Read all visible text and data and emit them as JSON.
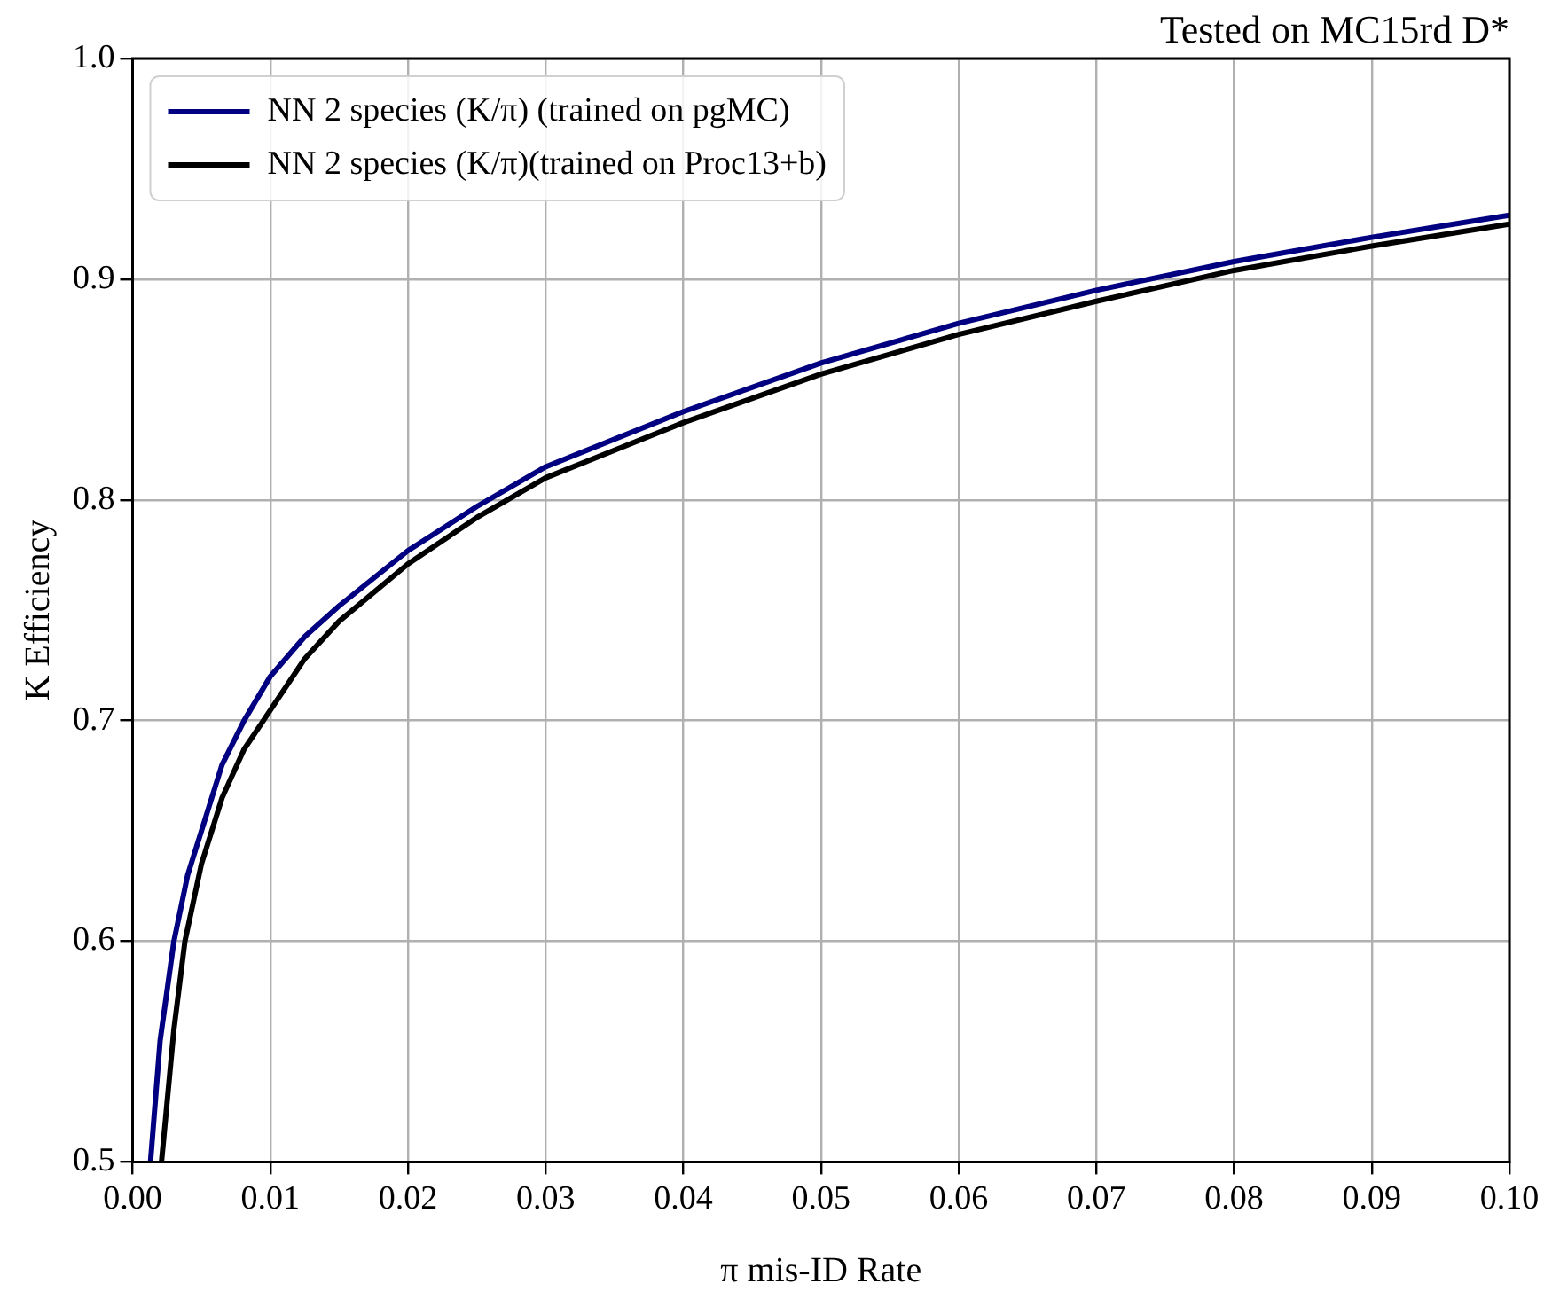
{
  "chart_data": {
    "type": "line",
    "title": "Tested on MC15rd D*",
    "xlabel": "π mis-ID Rate",
    "ylabel": "K Efficiency",
    "xlim": [
      0,
      0.1
    ],
    "ylim": [
      0.5,
      1.0
    ],
    "xticks": [
      {
        "value": 0,
        "label": "0.00"
      },
      {
        "value": 0.01,
        "label": "0.01"
      },
      {
        "value": 0.02,
        "label": "0.02"
      },
      {
        "value": 0.03,
        "label": "0.03"
      },
      {
        "value": 0.04,
        "label": "0.04"
      },
      {
        "value": 0.05,
        "label": "0.05"
      },
      {
        "value": 0.06,
        "label": "0.06"
      },
      {
        "value": 0.07,
        "label": "0.07"
      },
      {
        "value": 0.08,
        "label": "0.08"
      },
      {
        "value": 0.09,
        "label": "0.09"
      },
      {
        "value": 0.1,
        "label": "0.10"
      }
    ],
    "yticks": [
      0.5,
      0.6,
      0.7,
      0.8,
      0.9,
      {
        "value": 1.0,
        "label": "1.0"
      }
    ],
    "grid": true,
    "legend": "top left",
    "marker": "none",
    "line_style": "solid",
    "series": [
      {
        "name": "NN 2 species (K/π) (trained on pgMC)",
        "color": "#000080",
        "x": [
          0.0013,
          0.002,
          0.003,
          0.004,
          0.005,
          0.0065,
          0.0081,
          0.01,
          0.0125,
          0.015,
          0.02,
          0.025,
          0.03,
          0.04,
          0.05,
          0.06,
          0.07,
          0.08,
          0.09,
          0.1
        ],
        "values": [
          0.5,
          0.555,
          0.6,
          0.63,
          0.65,
          0.68,
          0.7,
          0.72,
          0.738,
          0.752,
          0.777,
          0.797,
          0.815,
          0.84,
          0.862,
          0.88,
          0.895,
          0.908,
          0.919,
          0.929
        ]
      },
      {
        "name": "NN 2 species (K/π)(trained on Proc13+b)",
        "color": "#000000",
        "x": [
          0.0021,
          0.003,
          0.0038,
          0.005,
          0.0065,
          0.0081,
          0.0095,
          0.0125,
          0.015,
          0.02,
          0.025,
          0.03,
          0.04,
          0.05,
          0.06,
          0.07,
          0.08,
          0.09,
          0.1
        ],
        "values": [
          0.5,
          0.56,
          0.6,
          0.635,
          0.665,
          0.687,
          0.7,
          0.728,
          0.745,
          0.771,
          0.792,
          0.81,
          0.835,
          0.857,
          0.875,
          0.89,
          0.904,
          0.915,
          0.925
        ]
      }
    ]
  }
}
